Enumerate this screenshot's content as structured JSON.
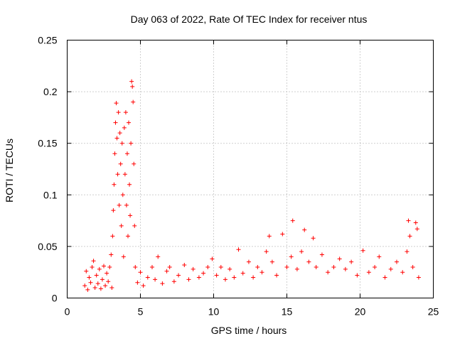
{
  "chart_data": {
    "type": "scatter",
    "title": "Day 063 of 2022, Rate Of TEC Index for receiver ntus",
    "xlabel": "GPS time / hours",
    "ylabel": "ROTI / TECUs",
    "xlim": [
      0,
      25
    ],
    "ylim": [
      0,
      0.25
    ],
    "x_ticks": [
      "0",
      "5",
      "10",
      "15",
      "20",
      "25"
    ],
    "y_ticks": [
      "0",
      "0.05",
      "0.1",
      "0.15",
      "0.2",
      "0.25"
    ],
    "grid": true,
    "marker": "plus",
    "color": "#ff0000",
    "series": [
      {
        "points": [
          [
            1.2,
            0.012
          ],
          [
            1.3,
            0.026
          ],
          [
            1.4,
            0.008
          ],
          [
            1.5,
            0.02
          ],
          [
            1.6,
            0.015
          ],
          [
            1.7,
            0.03
          ],
          [
            1.8,
            0.036
          ],
          [
            1.9,
            0.01
          ],
          [
            2.0,
            0.022
          ],
          [
            2.1,
            0.014
          ],
          [
            2.2,
            0.028
          ],
          [
            2.3,
            0.009
          ],
          [
            2.4,
            0.018
          ],
          [
            2.5,
            0.031
          ],
          [
            2.6,
            0.012
          ],
          [
            2.7,
            0.024
          ],
          [
            2.8,
            0.016
          ],
          [
            2.9,
            0.03
          ],
          [
            3.0,
            0.042
          ],
          [
            3.05,
            0.01
          ],
          [
            3.1,
            0.06
          ],
          [
            3.15,
            0.085
          ],
          [
            3.2,
            0.11
          ],
          [
            3.25,
            0.14
          ],
          [
            3.3,
            0.17
          ],
          [
            3.35,
            0.189
          ],
          [
            3.4,
            0.155
          ],
          [
            3.45,
            0.12
          ],
          [
            3.5,
            0.18
          ],
          [
            3.55,
            0.09
          ],
          [
            3.6,
            0.16
          ],
          [
            3.65,
            0.13
          ],
          [
            3.7,
            0.07
          ],
          [
            3.75,
            0.15
          ],
          [
            3.8,
            0.1
          ],
          [
            3.85,
            0.04
          ],
          [
            3.9,
            0.165
          ],
          [
            3.95,
            0.12
          ],
          [
            4.0,
            0.18
          ],
          [
            4.05,
            0.09
          ],
          [
            4.1,
            0.14
          ],
          [
            4.15,
            0.06
          ],
          [
            4.2,
            0.17
          ],
          [
            4.25,
            0.11
          ],
          [
            4.3,
            0.08
          ],
          [
            4.35,
            0.15
          ],
          [
            4.4,
            0.21
          ],
          [
            4.45,
            0.205
          ],
          [
            4.5,
            0.19
          ],
          [
            4.55,
            0.13
          ],
          [
            4.6,
            0.07
          ],
          [
            4.65,
            0.03
          ],
          [
            4.8,
            0.015
          ],
          [
            5.0,
            0.025
          ],
          [
            5.2,
            0.012
          ],
          [
            5.5,
            0.02
          ],
          [
            5.8,
            0.03
          ],
          [
            6.0,
            0.018
          ],
          [
            6.2,
            0.04
          ],
          [
            6.5,
            0.014
          ],
          [
            6.8,
            0.026
          ],
          [
            7.0,
            0.03
          ],
          [
            7.3,
            0.016
          ],
          [
            7.6,
            0.022
          ],
          [
            8.0,
            0.032
          ],
          [
            8.3,
            0.018
          ],
          [
            8.6,
            0.028
          ],
          [
            9.0,
            0.02
          ],
          [
            9.3,
            0.024
          ],
          [
            9.6,
            0.03
          ],
          [
            9.9,
            0.038
          ],
          [
            10.2,
            0.022
          ],
          [
            10.5,
            0.03
          ],
          [
            10.8,
            0.018
          ],
          [
            11.1,
            0.028
          ],
          [
            11.4,
            0.02
          ],
          [
            11.7,
            0.047
          ],
          [
            12.0,
            0.024
          ],
          [
            12.4,
            0.035
          ],
          [
            12.7,
            0.02
          ],
          [
            13.0,
            0.03
          ],
          [
            13.3,
            0.025
          ],
          [
            13.6,
            0.045
          ],
          [
            13.8,
            0.06
          ],
          [
            14.0,
            0.035
          ],
          [
            14.3,
            0.022
          ],
          [
            14.7,
            0.062
          ],
          [
            15.0,
            0.03
          ],
          [
            15.3,
            0.04
          ],
          [
            15.4,
            0.075
          ],
          [
            15.7,
            0.028
          ],
          [
            16.0,
            0.045
          ],
          [
            16.2,
            0.066
          ],
          [
            16.5,
            0.035
          ],
          [
            16.8,
            0.058
          ],
          [
            17.0,
            0.03
          ],
          [
            17.4,
            0.042
          ],
          [
            17.8,
            0.025
          ],
          [
            18.2,
            0.03
          ],
          [
            18.6,
            0.038
          ],
          [
            19.0,
            0.028
          ],
          [
            19.4,
            0.035
          ],
          [
            19.8,
            0.022
          ],
          [
            20.2,
            0.046
          ],
          [
            20.6,
            0.025
          ],
          [
            21.0,
            0.03
          ],
          [
            21.3,
            0.04
          ],
          [
            21.7,
            0.02
          ],
          [
            22.1,
            0.028
          ],
          [
            22.5,
            0.035
          ],
          [
            22.9,
            0.025
          ],
          [
            23.2,
            0.045
          ],
          [
            23.3,
            0.075
          ],
          [
            23.4,
            0.06
          ],
          [
            23.6,
            0.03
          ],
          [
            23.8,
            0.073
          ],
          [
            23.9,
            0.067
          ],
          [
            24.0,
            0.02
          ]
        ]
      }
    ]
  }
}
